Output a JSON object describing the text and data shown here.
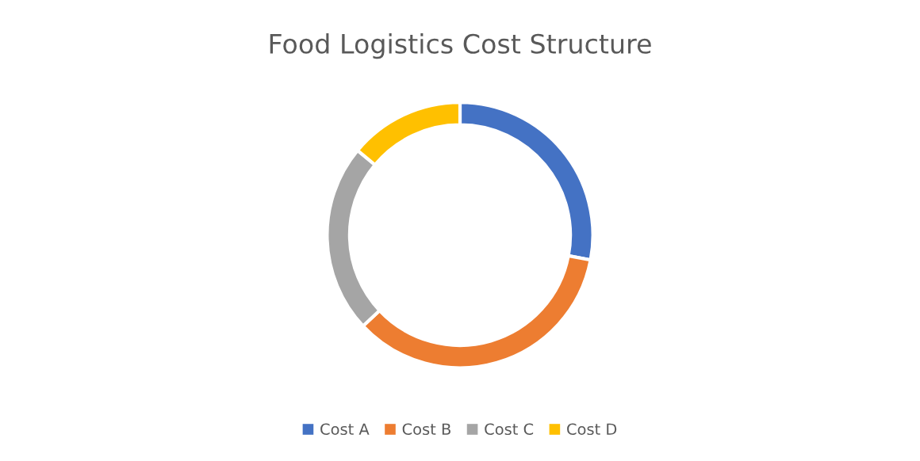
{
  "chart_data": {
    "type": "donut",
    "title": "Food Logistics Cost Structure",
    "categories": [
      "Cost A",
      "Cost B",
      "Cost C",
      "Cost D"
    ],
    "values": [
      28,
      35,
      23,
      14
    ],
    "colors": [
      "#4472c4",
      "#ed7d31",
      "#a5a5a5",
      "#ffc000"
    ],
    "legend": "bottom"
  }
}
